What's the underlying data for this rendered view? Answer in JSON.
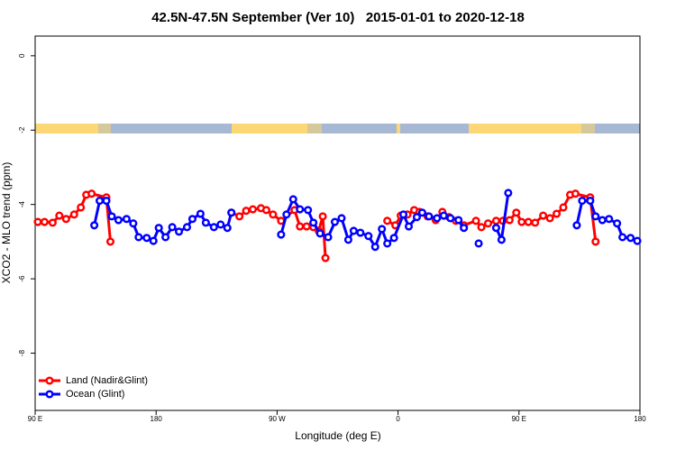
{
  "chart_data": {
    "type": "line",
    "title": "42.5N-47.5N September (Ver 10)   2015-01-01 to 2020-12-18",
    "x_label": "Longitude (deg E)",
    "y_label": "XCO2 - MLO trend (ppm)",
    "xlim": [
      90,
      540
    ],
    "xticks": [
      {
        "value": 90,
        "label": "90 E"
      },
      {
        "value": 180,
        "label": "180"
      },
      {
        "value": 270,
        "label": "90 W"
      },
      {
        "value": 360,
        "label": "0"
      },
      {
        "value": 450,
        "label": "90 E"
      },
      {
        "value": 540,
        "label": "180"
      }
    ],
    "ylim": [
      -9.54,
      0.53
    ],
    "yticks": [
      0,
      -2,
      -4,
      -6,
      -8
    ],
    "legend": "bottom-left",
    "series": [
      {
        "name": "Land (Nadir&Glint)",
        "color": "#ff0000",
        "x": [
          92,
          97,
          103,
          108,
          113,
          119,
          124,
          128,
          132,
          143,
          146,
          null,
          236,
          242,
          247,
          252,
          258,
          262,
          267,
          273,
          283,
          287,
          292,
          297,
          301,
          304,
          306,
          null,
          352,
          358,
          362,
          367,
          372,
          376,
          382,
          388,
          393,
          398,
          403,
          409,
          418,
          422,
          427,
          433,
          438,
          443,
          448,
          452,
          457,
          462,
          468,
          473,
          478,
          483,
          488,
          492,
          503,
          507
        ],
        "values": [
          -4.47,
          -4.47,
          -4.49,
          -4.3,
          -4.39,
          -4.27,
          -4.08,
          -3.74,
          -3.71,
          -3.81,
          -5.0,
          null,
          -4.22,
          -4.32,
          -4.17,
          -4.13,
          -4.1,
          -4.15,
          -4.27,
          -4.44,
          -4.15,
          -4.59,
          -4.59,
          -4.61,
          -4.71,
          -4.32,
          -5.44,
          null,
          -4.44,
          -4.56,
          -4.3,
          -4.27,
          -4.15,
          -4.2,
          -4.32,
          -4.42,
          -4.2,
          -4.34,
          -4.44,
          -4.56,
          -4.44,
          -4.61,
          -4.51,
          -4.44,
          -4.44,
          -4.42,
          -4.22,
          -4.47,
          -4.47,
          -4.49,
          -4.3,
          -4.37,
          -4.25,
          -4.08,
          -3.74,
          -3.71,
          -3.81,
          -5.0
        ]
      },
      {
        "name": "Ocean (Glint)",
        "color": "#0000ff",
        "x": [
          134,
          138,
          143,
          147,
          152,
          158,
          163,
          167,
          173,
          178,
          182,
          187,
          192,
          197,
          203,
          207,
          213,
          217,
          223,
          228,
          233,
          236,
          null,
          273,
          277,
          282,
          287,
          293,
          297,
          302,
          308,
          313,
          318,
          323,
          327,
          332,
          338,
          343,
          348,
          352,
          357,
          364,
          368,
          374,
          378,
          383,
          389,
          394,
          399,
          405,
          409,
          null,
          420,
          null,
          433,
          437,
          442,
          null,
          493,
          497,
          503,
          507,
          512,
          517,
          523,
          527,
          533,
          538
        ],
        "values": [
          -4.56,
          -3.9,
          -3.9,
          -4.32,
          -4.42,
          -4.39,
          -4.51,
          -4.88,
          -4.9,
          -4.98,
          -4.63,
          -4.88,
          -4.61,
          -4.73,
          -4.61,
          -4.39,
          -4.25,
          -4.49,
          -4.61,
          -4.54,
          -4.63,
          -4.22,
          null,
          -4.81,
          -4.27,
          -3.86,
          -4.13,
          -4.15,
          -4.49,
          -4.78,
          -4.88,
          -4.47,
          -4.37,
          -4.95,
          -4.71,
          -4.76,
          -4.85,
          -5.14,
          -4.66,
          -5.05,
          -4.9,
          -4.27,
          -4.59,
          -4.34,
          -4.22,
          -4.32,
          -4.37,
          -4.3,
          -4.37,
          -4.42,
          -4.63,
          null,
          -5.05,
          null,
          -4.63,
          -4.95,
          -3.69,
          null,
          -4.56,
          -3.9,
          -3.9,
          -4.32,
          -4.42,
          -4.39,
          -4.51,
          -4.88,
          -4.9,
          -4.98
        ]
      }
    ]
  }
}
